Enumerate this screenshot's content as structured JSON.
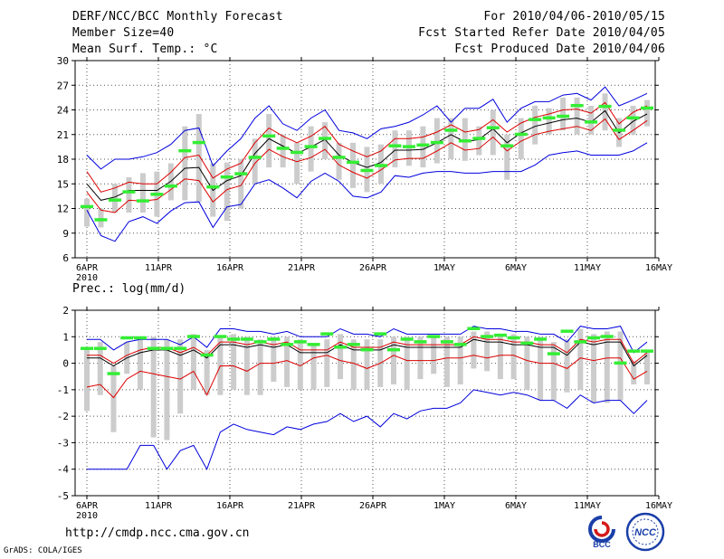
{
  "header": {
    "title": "DERF/NCC/BCC Monthly Forecast",
    "member_size": "Member Size=40",
    "variable": "Mean Surf. Temp.: °C",
    "period": "For 2010/04/06-2010/05/15",
    "fcst_started": "Fcst Started Refer Date 2010/04/05",
    "fcst_produced": "Fcst Produced Date 2010/04/06"
  },
  "footer": {
    "url": "http://cmdp.ncc.cma.gov.cn",
    "grads_credit": "GrADS: COLA/IGES",
    "logo_bcc_text": "BCC",
    "logo_ncc_text": "NCC"
  },
  "colors": {
    "box": "#cccccc",
    "observed": "#33ee33",
    "mean": "#000000",
    "spread_inner": "#dd0000",
    "spread_outer": "#0000dd",
    "grid": "#555555"
  },
  "chart_data": [
    {
      "type": "line",
      "title": "Mean Surf. Temp.: °C",
      "xlabel": "",
      "ylabel": "Mean Surf. Temp. (°C)",
      "x_tick_labels": [
        "6APR",
        "11APR",
        "16APR",
        "21APR",
        "26APR",
        "1MAY",
        "6MAY",
        "11MAY",
        "16MAY"
      ],
      "x_year_label": "2010",
      "ylim": [
        6,
        30
      ],
      "y_ticks": [
        6,
        9,
        12,
        15,
        18,
        21,
        24,
        27,
        30
      ],
      "grid": true,
      "series": [
        {
          "name": "ensemble mean",
          "color": "#000000",
          "values": [
            15.0,
            13.0,
            13.4,
            14.2,
            14.2,
            14.2,
            15.3,
            16.9,
            17.0,
            14.2,
            15.4,
            16.0,
            18.7,
            20.5,
            19.6,
            18.7,
            19.5,
            20.4,
            18.5,
            17.6,
            17.0,
            17.6,
            19.1,
            19.1,
            19.2,
            20.0,
            21.0,
            20.1,
            20.4,
            21.7,
            20.0,
            21.2,
            22.0,
            22.4,
            22.8,
            23.0,
            22.5,
            23.9,
            21.2,
            22.6,
            23.5
          ]
        },
        {
          "name": "upper inner",
          "color": "#dd0000",
          "values": [
            16.5,
            14.0,
            14.5,
            15.2,
            15.0,
            15.0,
            16.4,
            18.2,
            18.5,
            15.7,
            16.8,
            17.5,
            20.0,
            21.8,
            20.8,
            20.0,
            20.8,
            22.0,
            19.8,
            19.0,
            18.3,
            19.0,
            20.5,
            20.5,
            20.7,
            21.3,
            22.2,
            21.3,
            21.6,
            22.8,
            21.3,
            22.4,
            23.1,
            23.5,
            24.0,
            24.1,
            23.6,
            24.9,
            22.3,
            23.7,
            24.5
          ]
        },
        {
          "name": "lower inner",
          "color": "#dd0000",
          "values": [
            14.0,
            11.8,
            11.5,
            13.0,
            12.9,
            13.1,
            14.3,
            15.6,
            15.4,
            12.8,
            14.3,
            14.8,
            17.5,
            19.2,
            18.3,
            17.7,
            18.2,
            19.2,
            17.3,
            16.4,
            15.7,
            16.7,
            17.9,
            18.1,
            18.1,
            19.0,
            20.0,
            19.1,
            19.3,
            20.7,
            19.0,
            20.2,
            21.0,
            21.4,
            21.7,
            22.0,
            21.5,
            22.9,
            20.4,
            21.5,
            22.7
          ]
        },
        {
          "name": "upper outer",
          "color": "#0000dd",
          "values": [
            18.5,
            16.8,
            18.0,
            18.0,
            18.3,
            18.8,
            19.8,
            21.5,
            21.8,
            17.2,
            19.0,
            20.5,
            23.0,
            24.5,
            22.3,
            21.5,
            23.0,
            24.0,
            21.5,
            21.2,
            20.5,
            21.7,
            22.0,
            22.5,
            23.4,
            24.5,
            22.5,
            24.2,
            24.2,
            25.3,
            22.5,
            24.2,
            25.0,
            25.0,
            25.8,
            26.0,
            25.2,
            26.8,
            24.5,
            25.2,
            26.0
          ]
        },
        {
          "name": "lower outer",
          "color": "#0000dd",
          "values": [
            11.8,
            8.7,
            8.0,
            10.4,
            11.0,
            10.2,
            11.7,
            12.7,
            12.8,
            9.7,
            12.2,
            12.5,
            15.0,
            15.5,
            14.5,
            13.3,
            15.3,
            16.3,
            15.3,
            13.5,
            13.3,
            14.0,
            16.0,
            15.8,
            16.3,
            16.5,
            16.5,
            16.3,
            16.3,
            16.5,
            16.5,
            16.5,
            17.3,
            18.5,
            18.8,
            19.0,
            18.5,
            18.5,
            18.5,
            19.0,
            20.0
          ]
        },
        {
          "name": "observed",
          "color": "#33ee33",
          "values": [
            12.2,
            10.6,
            13.0,
            14.0,
            12.9,
            13.7,
            14.7,
            19.0,
            20.0,
            14.6,
            15.8,
            16.2,
            18.2,
            20.8,
            19.3,
            18.8,
            19.5,
            20.5,
            18.2,
            17.6,
            16.6,
            17.2,
            19.6,
            19.5,
            19.7,
            20.0,
            21.5,
            20.2,
            20.5,
            21.8,
            19.6,
            21.0,
            22.8,
            23.0,
            23.2,
            24.5,
            22.5,
            24.4,
            21.5,
            23.0,
            24.2
          ]
        },
        {
          "name": "box top",
          "color": "#cccccc",
          "values": [
            13.2,
            12.0,
            15.0,
            15.8,
            16.3,
            16.5,
            17.5,
            22.0,
            23.5,
            17.5,
            17.6,
            18.0,
            20.5,
            23.5,
            21.0,
            20.0,
            22.0,
            22.5,
            20.0,
            20.0,
            19.5,
            19.8,
            21.5,
            21.5,
            22.0,
            23.0,
            23.0,
            23.0,
            22.0,
            24.0,
            21.0,
            23.0,
            24.5,
            24.2,
            25.5,
            25.5,
            24.5,
            26.0,
            23.0,
            24.5,
            25.2
          ]
        },
        {
          "name": "box bottom",
          "color": "#cccccc",
          "values": [
            9.8,
            9.7,
            11.5,
            11.5,
            11.5,
            11.0,
            13.0,
            13.0,
            12.8,
            11.0,
            10.5,
            12.0,
            15.0,
            17.0,
            17.0,
            15.0,
            16.5,
            18.0,
            15.5,
            14.5,
            14.0,
            15.0,
            17.0,
            17.2,
            17.0,
            17.5,
            18.0,
            17.8,
            18.5,
            18.5,
            15.5,
            18.0,
            19.8,
            21.0,
            21.5,
            21.0,
            21.0,
            21.5,
            19.5,
            21.0,
            22.0
          ]
        }
      ]
    },
    {
      "type": "line",
      "title": "Prec.: log(mm/d)",
      "xlabel": "",
      "ylabel": "Prec. log(mm/d)",
      "x_tick_labels": [
        "6APR",
        "11APR",
        "16APR",
        "21APR",
        "26APR",
        "1MAY",
        "6MAY",
        "11MAY",
        "16MAY"
      ],
      "x_year_label": "2010",
      "ylim": [
        -5,
        2
      ],
      "y_ticks": [
        -5,
        -4,
        -3,
        -2,
        -1,
        0,
        1,
        2
      ],
      "grid": true,
      "series": [
        {
          "name": "ensemble mean",
          "color": "#000000",
          "values": [
            0.2,
            0.2,
            -0.1,
            0.2,
            0.4,
            0.5,
            0.5,
            0.3,
            0.5,
            0.2,
            0.7,
            0.7,
            0.6,
            0.7,
            0.6,
            0.7,
            0.4,
            0.4,
            0.4,
            0.7,
            0.5,
            0.5,
            0.5,
            0.7,
            0.6,
            0.6,
            0.6,
            0.6,
            0.6,
            0.9,
            0.8,
            0.8,
            0.7,
            0.7,
            0.6,
            0.6,
            0.3,
            0.8,
            0.7,
            0.8,
            0.8,
            -0.1,
            0.3
          ]
        },
        {
          "name": "upper inner",
          "color": "#dd0000",
          "values": [
            0.3,
            0.3,
            0.0,
            0.3,
            0.5,
            0.6,
            0.6,
            0.4,
            0.6,
            0.3,
            0.8,
            0.8,
            0.7,
            0.8,
            0.7,
            0.8,
            0.5,
            0.5,
            0.5,
            0.8,
            0.6,
            0.6,
            0.6,
            0.8,
            0.7,
            0.7,
            0.7,
            0.7,
            0.7,
            1.0,
            0.9,
            0.9,
            0.8,
            0.8,
            0.7,
            0.7,
            0.4,
            0.9,
            0.8,
            0.9,
            0.9,
            0.0,
            0.4
          ]
        },
        {
          "name": "lower inner",
          "color": "#dd0000",
          "values": [
            -0.9,
            -0.8,
            -1.3,
            -0.6,
            -0.3,
            -0.4,
            -0.5,
            -0.6,
            -0.3,
            -1.2,
            -0.1,
            -0.1,
            -0.3,
            0.0,
            0.0,
            0.1,
            -0.1,
            0.2,
            0.3,
            0.1,
            0.0,
            -0.2,
            0.0,
            0.3,
            0.1,
            0.1,
            0.1,
            0.2,
            0.2,
            0.3,
            0.2,
            0.3,
            0.3,
            0.1,
            0.0,
            0.0,
            -0.2,
            0.2,
            0.1,
            0.2,
            0.2,
            -0.6,
            -0.3
          ]
        },
        {
          "name": "upper outer",
          "color": "#0000dd",
          "values": [
            0.9,
            0.9,
            0.5,
            0.8,
            0.9,
            0.9,
            0.9,
            0.7,
            1.0,
            0.6,
            1.3,
            1.3,
            1.2,
            1.2,
            1.1,
            1.2,
            1.0,
            1.0,
            1.0,
            1.3,
            1.1,
            1.1,
            1.0,
            1.3,
            1.1,
            1.1,
            1.1,
            1.1,
            1.1,
            1.4,
            1.3,
            1.3,
            1.2,
            1.2,
            1.1,
            1.1,
            0.8,
            1.4,
            1.3,
            1.3,
            1.4,
            0.4,
            0.8
          ]
        },
        {
          "name": "lower outer",
          "color": "#0000dd",
          "values": [
            -4.0,
            -4.0,
            -4.0,
            -4.0,
            -3.1,
            -3.1,
            -4.0,
            -3.3,
            -3.1,
            -4.0,
            -2.6,
            -2.3,
            -2.5,
            -2.6,
            -2.7,
            -2.4,
            -2.5,
            -2.3,
            -2.2,
            -1.9,
            -2.2,
            -2.0,
            -2.4,
            -1.9,
            -2.1,
            -1.8,
            -1.7,
            -1.7,
            -1.5,
            -1.0,
            -1.1,
            -1.2,
            -1.1,
            -1.2,
            -1.4,
            -1.4,
            -1.7,
            -1.2,
            -1.5,
            -1.4,
            -1.4,
            -1.9,
            -1.4
          ]
        },
        {
          "name": "observed",
          "color": "#33ee33",
          "values": [
            0.55,
            0.55,
            -0.4,
            0.95,
            0.95,
            0.55,
            0.55,
            0.55,
            1.0,
            0.3,
            1.0,
            0.9,
            0.9,
            0.8,
            0.9,
            0.7,
            0.8,
            0.7,
            1.1,
            0.6,
            0.7,
            0.5,
            1.1,
            0.5,
            0.9,
            0.8,
            1.0,
            0.8,
            0.7,
            1.3,
            1.0,
            1.05,
            0.95,
            0.75,
            0.9,
            0.35,
            1.2,
            0.8,
            0.95,
            1.0,
            0.0,
            0.45,
            0.45
          ]
        },
        {
          "name": "box top",
          "color": "#cccccc",
          "values": [
            0.6,
            0.8,
            -0.1,
            0.8,
            1.0,
            1.0,
            0.9,
            0.9,
            1.1,
            0.5,
            1.0,
            1.1,
            1.0,
            0.9,
            1.0,
            1.0,
            0.9,
            0.7,
            0.9,
            1.1,
            0.9,
            0.9,
            0.9,
            1.0,
            1.0,
            1.0,
            1.0,
            1.0,
            1.0,
            1.2,
            1.2,
            1.1,
            1.1,
            1.0,
            1.0,
            0.8,
            0.9,
            1.3,
            1.1,
            1.2,
            1.2,
            0.1,
            0.5
          ]
        },
        {
          "name": "box bottom",
          "color": "#cccccc",
          "values": [
            -1.8,
            -1.2,
            -2.6,
            -0.4,
            -1.0,
            -2.8,
            -2.9,
            -1.9,
            -1.0,
            -1.2,
            -1.2,
            -1.0,
            -1.2,
            -1.2,
            -0.7,
            -0.9,
            -1.0,
            -1.0,
            -0.9,
            -0.6,
            -1.0,
            -1.0,
            -0.9,
            -0.8,
            -1.0,
            -0.6,
            -0.4,
            -0.9,
            -0.8,
            -0.2,
            -0.3,
            -0.6,
            -0.6,
            -1.0,
            -1.4,
            -1.4,
            -1.1,
            -1.0,
            -1.5,
            -1.5,
            -1.4,
            -0.8,
            -0.8
          ]
        }
      ]
    }
  ]
}
